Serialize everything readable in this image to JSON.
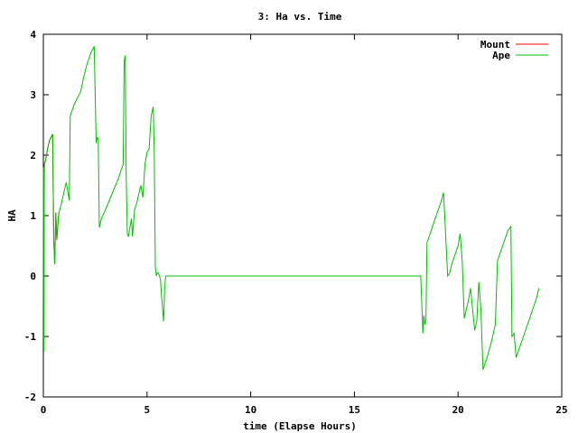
{
  "chart_data": {
    "type": "line",
    "title": "3: Ha vs. Time",
    "xlabel": "time (Elapse Hours)",
    "ylabel": "HA",
    "xlim": [
      0,
      25
    ],
    "ylim": [
      -2,
      4
    ],
    "xticks": [
      0,
      5,
      10,
      15,
      20,
      25
    ],
    "yticks": [
      -2,
      -1,
      0,
      1,
      2,
      3,
      4
    ],
    "grid": false,
    "legend_position": "top-right",
    "series": [
      {
        "name": "Mount",
        "color": "#ff0000",
        "x": [
          0.0,
          0.02,
          0.05,
          0.1,
          0.2,
          0.3,
          0.45,
          0.5,
          0.55,
          0.6,
          0.65,
          0.7,
          0.75
        ],
        "y": [
          1.8,
          -1.25,
          1.85,
          1.9,
          2.1,
          2.25,
          2.35,
          0.6,
          0.2,
          1.05,
          0.6,
          0.85,
          1.05
        ]
      },
      {
        "name": "Ape",
        "color": "#00c000",
        "x": [
          0.0,
          0.02,
          0.05,
          0.1,
          0.2,
          0.3,
          0.45,
          0.5,
          0.55,
          0.6,
          0.65,
          0.7,
          0.75,
          0.8,
          0.9,
          1.0,
          1.1,
          1.2,
          1.25,
          1.3,
          1.4,
          1.5,
          1.65,
          1.8,
          1.95,
          2.1,
          2.3,
          2.45,
          2.55,
          2.6,
          2.65,
          2.7,
          2.8,
          3.0,
          3.3,
          3.6,
          3.85,
          3.9,
          3.95,
          4.0,
          4.05,
          4.1,
          4.2,
          4.25,
          4.3,
          4.4,
          4.5,
          4.6,
          4.7,
          4.8,
          4.9,
          4.95,
          5.0,
          5.1,
          5.2,
          5.3,
          5.35,
          5.4,
          5.45,
          5.5,
          5.55,
          5.6,
          5.65,
          5.7,
          5.8,
          5.85,
          5.9,
          6.0,
          8.0,
          10.0,
          12.0,
          14.0,
          16.0,
          17.0,
          18.0,
          18.2,
          18.3,
          18.35,
          18.4,
          18.45,
          18.5,
          18.6,
          18.7,
          18.8,
          18.9,
          19.0,
          19.1,
          19.2,
          19.3,
          19.4,
          19.5,
          19.6,
          19.7,
          19.8,
          19.9,
          20.0,
          20.05,
          20.1,
          20.2,
          20.3,
          20.4,
          20.5,
          20.6,
          20.8,
          20.9,
          21.0,
          21.1,
          21.2,
          21.3,
          21.4,
          21.6,
          21.8,
          21.9,
          22.0,
          22.2,
          22.4,
          22.55,
          22.6,
          22.7,
          22.8,
          23.0,
          23.2,
          23.4,
          23.6,
          23.8,
          23.9
        ],
        "y": [
          1.8,
          -1.25,
          1.85,
          1.9,
          2.1,
          2.25,
          2.35,
          0.6,
          0.2,
          1.05,
          0.6,
          0.85,
          1.05,
          1.1,
          1.25,
          1.4,
          1.55,
          1.35,
          1.25,
          2.65,
          2.75,
          2.85,
          2.95,
          3.05,
          3.3,
          3.5,
          3.7,
          3.8,
          2.2,
          2.3,
          2.25,
          0.8,
          0.95,
          1.1,
          1.35,
          1.6,
          1.85,
          3.55,
          3.65,
          1.6,
          0.7,
          0.65,
          0.85,
          0.95,
          0.65,
          1.1,
          1.2,
          1.35,
          1.5,
          1.3,
          1.85,
          1.95,
          2.05,
          2.1,
          2.65,
          2.8,
          2.05,
          0.15,
          0.0,
          0.05,
          0.05,
          0.0,
          -0.05,
          -0.35,
          -0.75,
          -0.2,
          0.0,
          0.0,
          0.0,
          0.0,
          0.0,
          0.0,
          0.0,
          0.0,
          0.0,
          0.0,
          -0.95,
          -0.65,
          -0.8,
          -0.75,
          0.55,
          0.65,
          0.75,
          0.85,
          0.95,
          1.05,
          1.15,
          1.25,
          1.38,
          0.7,
          0.0,
          0.05,
          0.2,
          0.3,
          0.4,
          0.5,
          0.6,
          0.7,
          0.25,
          -0.7,
          -0.55,
          -0.4,
          -0.2,
          -0.9,
          -0.75,
          -0.1,
          -0.55,
          -1.55,
          -1.45,
          -1.35,
          -1.1,
          -0.8,
          0.25,
          0.35,
          0.55,
          0.75,
          0.82,
          -1.0,
          -0.95,
          -1.35,
          -1.15,
          -0.95,
          -0.75,
          -0.55,
          -0.35,
          -0.2
        ]
      }
    ]
  }
}
